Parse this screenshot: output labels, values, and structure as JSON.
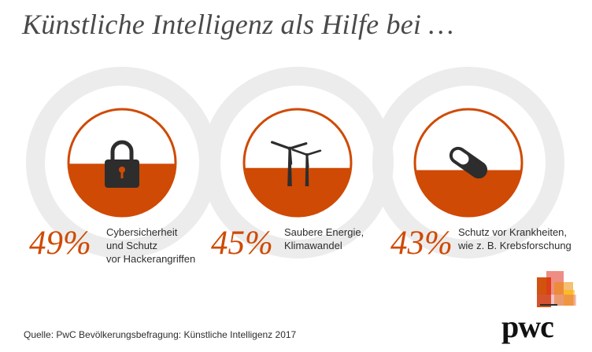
{
  "title": "Künstliche Intelligenz als Hilfe bei …",
  "colors": {
    "accent": "#cf4a04",
    "ring": "#ececec",
    "dark": "#2d2d2d"
  },
  "chart_data": {
    "type": "pie",
    "title": "Künstliche Intelligenz als Hilfe bei …",
    "items": [
      {
        "value_label": "49%",
        "value": 49,
        "label_lines": [
          "Cybersicherheit",
          "und Schutz",
          "vor Hackerangriffen"
        ],
        "icon": "lock-icon"
      },
      {
        "value_label": "45%",
        "value": 45,
        "label_lines": [
          "Saubere Energie,",
          "Klimawandel"
        ],
        "icon": "wind-turbine-icon"
      },
      {
        "value_label": "43%",
        "value": 43,
        "label_lines": [
          "Schutz vor Krankheiten,",
          "wie z. B. Krebsforschung"
        ],
        "icon": "pill-icon"
      }
    ]
  },
  "source": "Quelle: PwC Bevölkerungsbefragung: Künstliche Intelligenz 2017",
  "logo": {
    "text": "pwc"
  }
}
